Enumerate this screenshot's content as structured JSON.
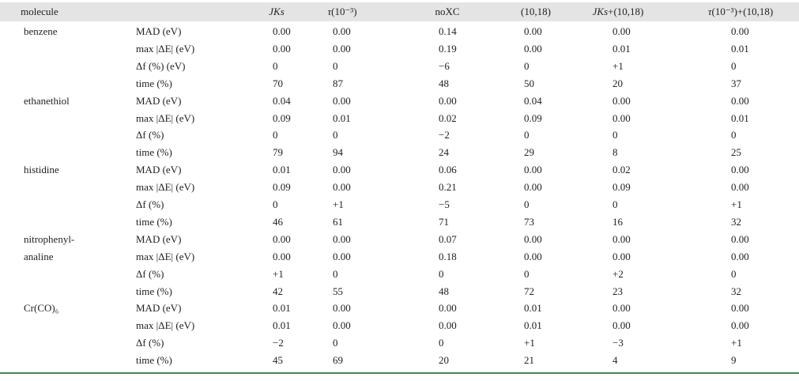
{
  "table": {
    "header": {
      "molecule": "molecule",
      "columns": [
        {
          "parts": [
            {
              "text": "JKs",
              "italic": true
            }
          ]
        },
        {
          "parts": [
            {
              "text": "τ",
              "italic": true
            },
            {
              "text": "(10⁻³)",
              "italic": false
            }
          ]
        },
        {
          "parts": [
            {
              "text": "noXC",
              "italic": false
            }
          ]
        },
        {
          "parts": [
            {
              "text": "(10,18)",
              "italic": false
            }
          ]
        },
        {
          "parts": [
            {
              "text": "JKs",
              "italic": true
            },
            {
              "text": "+(10,18)",
              "italic": false
            }
          ]
        },
        {
          "parts": [
            {
              "text": "τ",
              "italic": true
            },
            {
              "text": "(10⁻³)+(10,18)",
              "italic": false
            }
          ]
        }
      ]
    },
    "groups": [
      {
        "molecule": [
          "benzene"
        ],
        "rows": [
          {
            "label": "MAD (eV)",
            "cells": [
              "0.00",
              "0.00",
              "0.14",
              "0.00",
              "0.00",
              "0.00"
            ]
          },
          {
            "label": "max |ΔE| (eV)",
            "cells": [
              "0.00",
              "0.00",
              "0.19",
              "0.00",
              "0.01",
              "0.01"
            ]
          },
          {
            "label": "Δf (%) (eV)",
            "cells": [
              "0",
              "0",
              "−6",
              "0",
              "+1",
              "0"
            ]
          },
          {
            "label": "time (%)",
            "cells": [
              "70",
              "87",
              "48",
              "50",
              "20",
              "37"
            ]
          }
        ]
      },
      {
        "molecule": [
          "ethanethiol"
        ],
        "rows": [
          {
            "label": "MAD (eV)",
            "cells": [
              "0.04",
              "0.00",
              "0.00",
              "0.04",
              "0.00",
              "0.00"
            ]
          },
          {
            "label": "max |ΔE| (eV)",
            "cells": [
              "0.09",
              "0.01",
              "0.02",
              "0.09",
              "0.00",
              "0.01"
            ]
          },
          {
            "label": "Δf (%)",
            "cells": [
              "0",
              "0",
              "−2",
              "0",
              "0",
              "0"
            ]
          },
          {
            "label": "time (%)",
            "cells": [
              "79",
              "94",
              "24",
              "29",
              "8",
              "25"
            ]
          }
        ]
      },
      {
        "molecule": [
          "histidine"
        ],
        "rows": [
          {
            "label": "MAD (eV)",
            "cells": [
              "0.01",
              "0.00",
              "0.06",
              "0.00",
              "0.02",
              "0.00"
            ]
          },
          {
            "label": "max |ΔE| (eV)",
            "cells": [
              "0.09",
              "0.00",
              "0.21",
              "0.00",
              "0.09",
              "0.00"
            ]
          },
          {
            "label": "Δf (%)",
            "cells": [
              "0",
              "+1",
              "−5",
              "0",
              "0",
              "+1"
            ]
          },
          {
            "label": "time (%)",
            "cells": [
              "46",
              "61",
              "71",
              "73",
              "16",
              "32"
            ]
          }
        ]
      },
      {
        "molecule": [
          "nitrophenyl-",
          "analine"
        ],
        "rows": [
          {
            "label": "MAD (eV)",
            "cells": [
              "0.00",
              "0.00",
              "0.07",
              "0.00",
              "0.00",
              "0.00"
            ]
          },
          {
            "label": "max |ΔE| (eV)",
            "cells": [
              "0.00",
              "0.00",
              "0.18",
              "0.00",
              "0.00",
              "0.00"
            ]
          },
          {
            "label": "Δf (%)",
            "cells": [
              "+1",
              "0",
              "0",
              "0",
              "+2",
              "0"
            ]
          },
          {
            "label": "time (%)",
            "cells": [
              "42",
              "55",
              "48",
              "72",
              "23",
              "32"
            ]
          }
        ]
      },
      {
        "molecule": [
          "Cr(CO)₆"
        ],
        "rows": [
          {
            "label": "MAD (eV)",
            "cells": [
              "0.01",
              "0.00",
              "0.00",
              "0.01",
              "0.00",
              "0.00"
            ]
          },
          {
            "label": "max |ΔE| (eV)",
            "cells": [
              "0.01",
              "0.00",
              "0.00",
              "0.01",
              "0.00",
              "0.00"
            ]
          },
          {
            "label": "Δf (%)",
            "cells": [
              "−2",
              "0",
              "0",
              "+1",
              "−3",
              "+1"
            ]
          },
          {
            "label": "time (%)",
            "cells": [
              "45",
              "69",
              "20",
              "21",
              "4",
              "9"
            ]
          }
        ]
      }
    ]
  }
}
